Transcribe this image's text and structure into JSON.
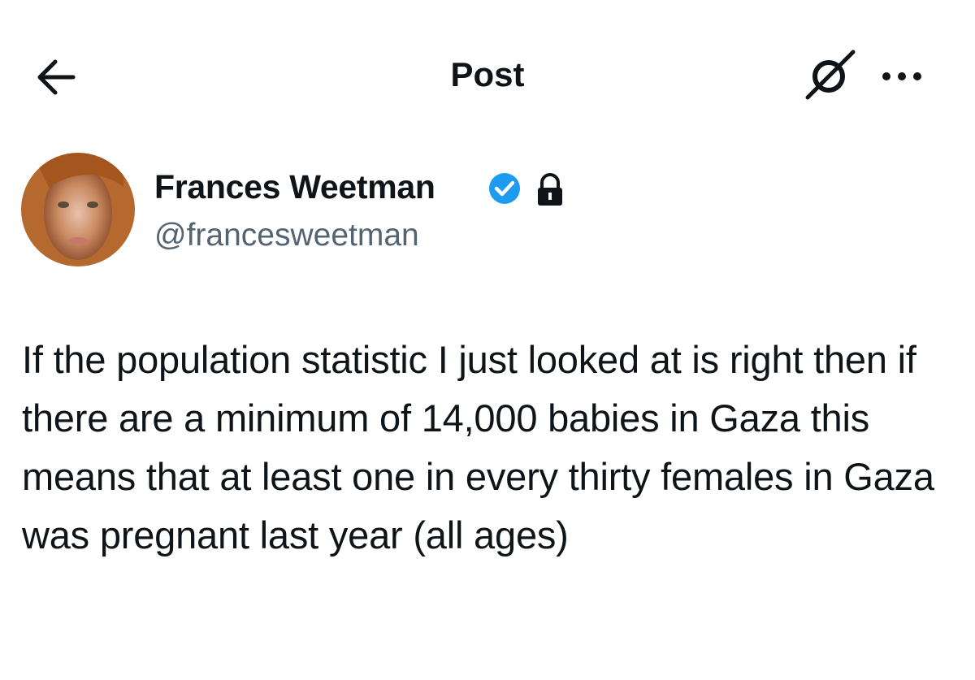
{
  "header": {
    "title": "Post"
  },
  "post": {
    "author": {
      "name": "Frances Weetman",
      "handle": "@francesweetman"
    },
    "text": "If the population statistic I just looked at is right then if there are a minimum of 14,000 babies in Gaza this means that at least one in every thirty females in Gaza was pregnant last year (all ages)"
  }
}
